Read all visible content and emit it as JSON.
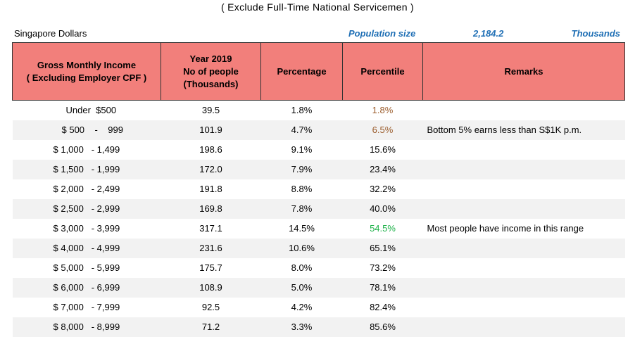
{
  "caption": "( Exclude  Full-Time  National  Servicemen )",
  "info": {
    "currency": "Singapore Dollars",
    "population_label": "Population size",
    "population_value": "2,184.2",
    "population_unit": "Thousands"
  },
  "colors": {
    "header_bg": "#f27f7b",
    "accent_blue": "#1f6fb5",
    "highlight_brown": "#9a5b2a",
    "highlight_green": "#1fb24a"
  },
  "headers": {
    "income_line1": "Gross  Monthly  Income",
    "income_line2": "( Excluding  Employer  CPF )",
    "people_line1": "Year 2019",
    "people_line2": "No of people",
    "people_line3": "(Thousands)",
    "percentage": "Percentage",
    "percentile": "Percentile",
    "remarks": "Remarks"
  },
  "rows": [
    {
      "income": "Under  $500",
      "people": "39.5",
      "percentage": "1.8%",
      "percentile": "1.8%",
      "remarks": ""
    },
    {
      "income": "$ 500    -    999",
      "people": "101.9",
      "percentage": "4.7%",
      "percentile": "6.5%",
      "remarks": "Bottom 5% earns less than S$1K p.m."
    },
    {
      "income": "$ 1,000   - 1,499",
      "people": "198.6",
      "percentage": "9.1%",
      "percentile": "15.6%",
      "remarks": ""
    },
    {
      "income": "$ 1,500   - 1,999",
      "people": "172.0",
      "percentage": "7.9%",
      "percentile": "23.4%",
      "remarks": ""
    },
    {
      "income": "$ 2,000   - 2,499",
      "people": "191.8",
      "percentage": "8.8%",
      "percentile": "32.2%",
      "remarks": ""
    },
    {
      "income": "$ 2,500   - 2,999",
      "people": "169.8",
      "percentage": "7.8%",
      "percentile": "40.0%",
      "remarks": ""
    },
    {
      "income": "$ 3,000   - 3,999",
      "people": "317.1",
      "percentage": "14.5%",
      "percentile": "54.5%",
      "remarks": "Most people have income in this range"
    },
    {
      "income": "$ 4,000   - 4,999",
      "people": "231.6",
      "percentage": "10.6%",
      "percentile": "65.1%",
      "remarks": ""
    },
    {
      "income": "$ 5,000   - 5,999",
      "people": "175.7",
      "percentage": "8.0%",
      "percentile": "73.2%",
      "remarks": ""
    },
    {
      "income": "$ 6,000   - 6,999",
      "people": "108.9",
      "percentage": "5.0%",
      "percentile": "78.1%",
      "remarks": ""
    },
    {
      "income": "$ 7,000   - 7,999",
      "people": "92.5",
      "percentage": "4.2%",
      "percentile": "82.4%",
      "remarks": ""
    },
    {
      "income": "$ 8,000   - 8,999",
      "people": "71.2",
      "percentage": "3.3%",
      "percentile": "85.6%",
      "remarks": ""
    }
  ]
}
